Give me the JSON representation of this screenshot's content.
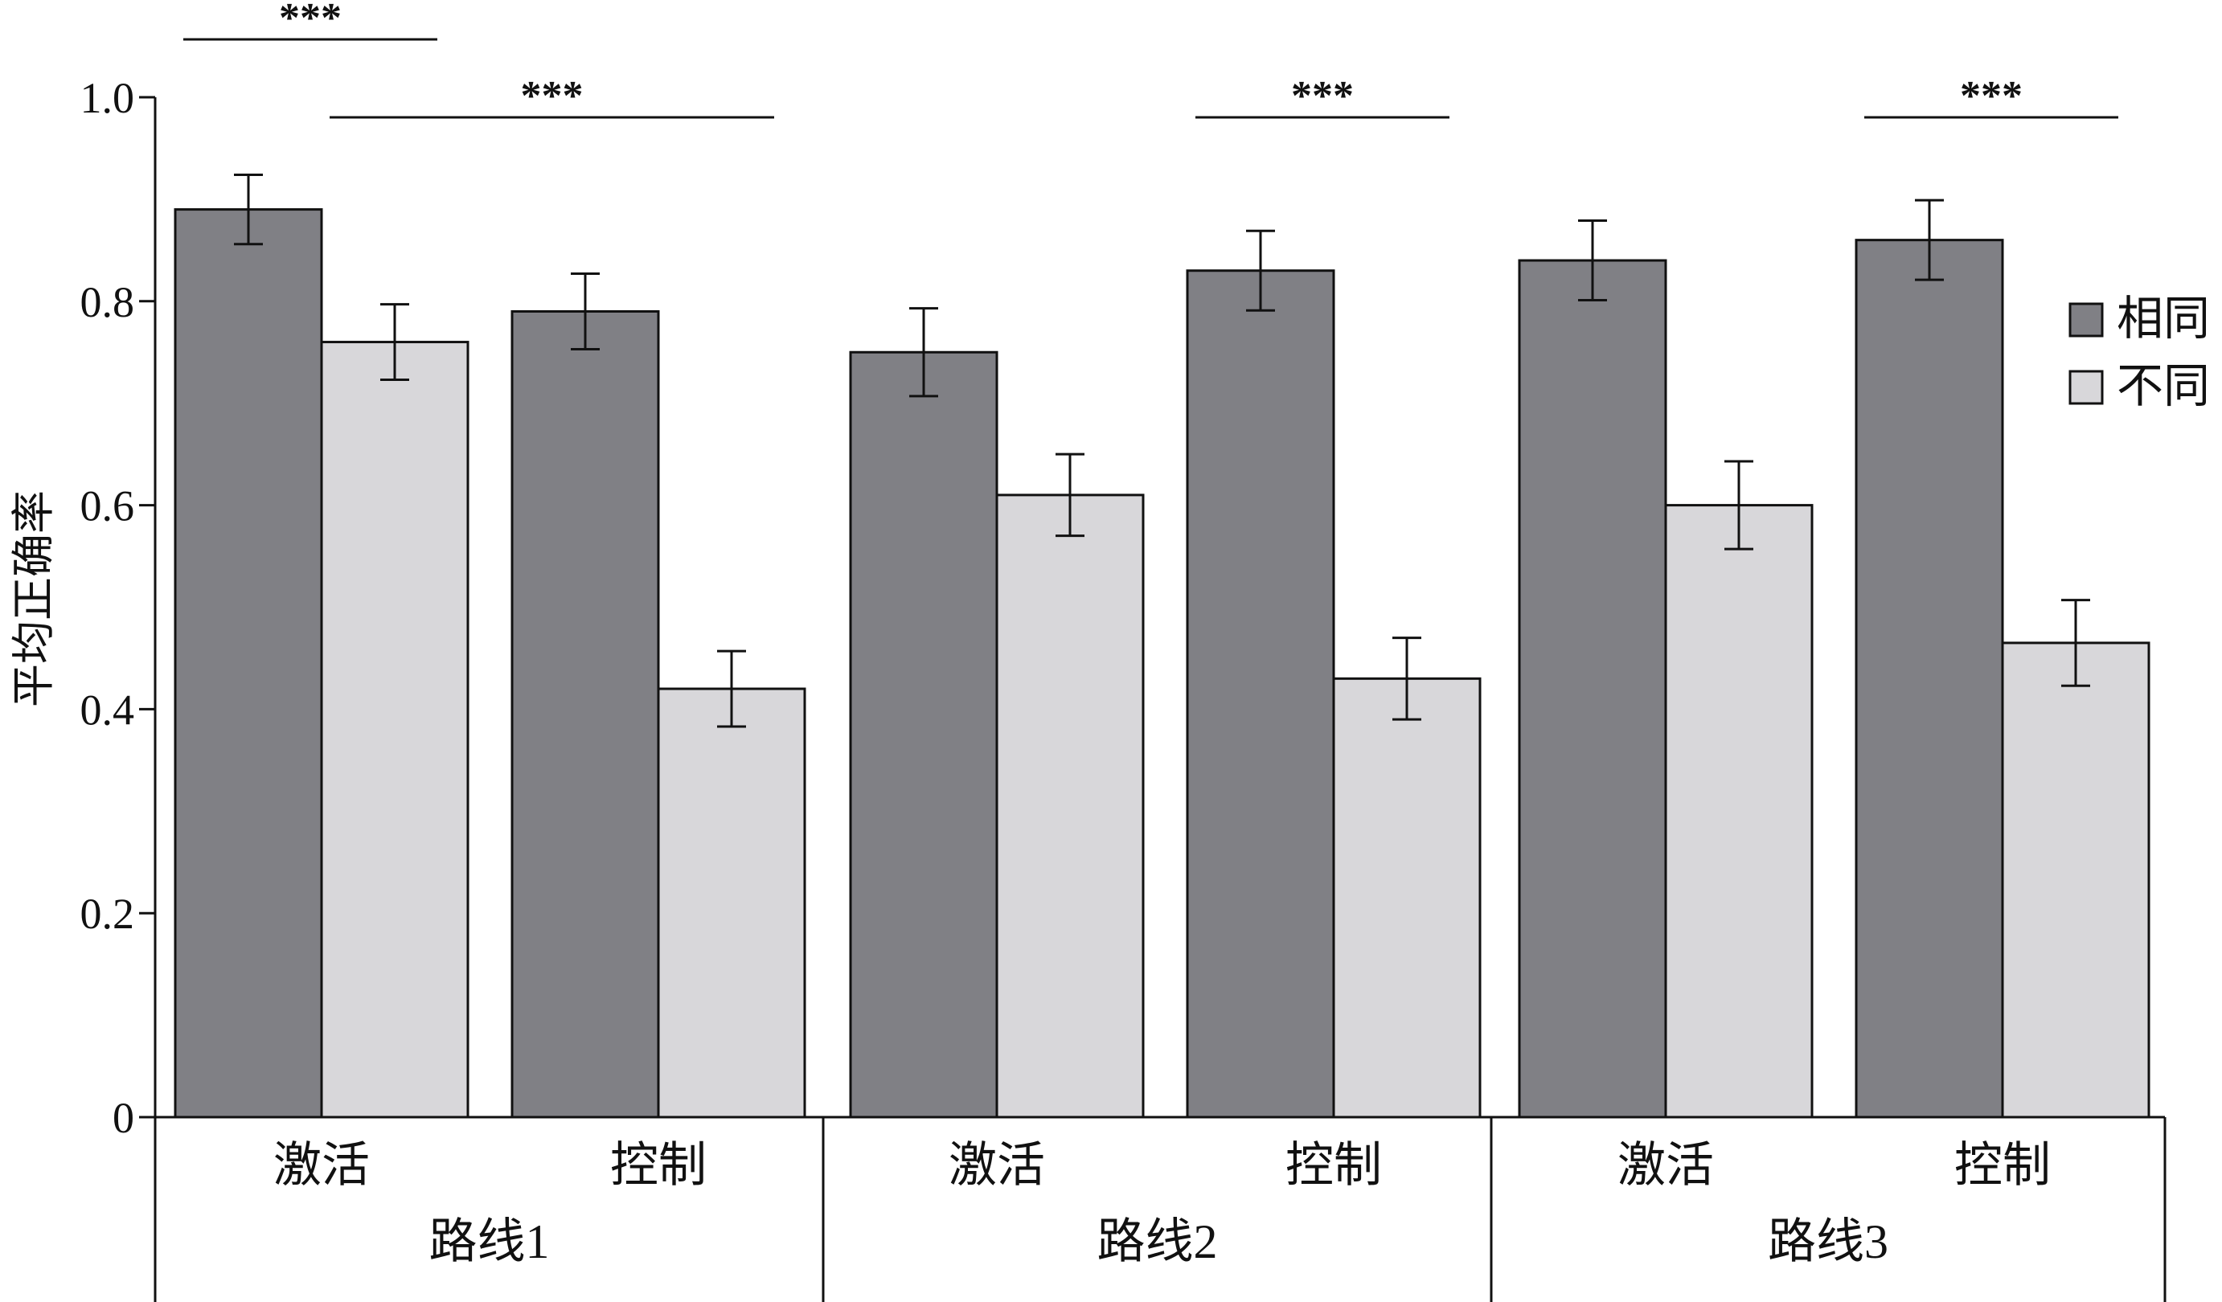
{
  "chart_data": {
    "type": "bar",
    "ylabel": "平均正确率",
    "ylim": [
      0,
      1.0
    ],
    "yticks": [
      0,
      0.2,
      0.4,
      0.6,
      0.8,
      1.0
    ],
    "ytick_labels": [
      "0",
      "0.2",
      "0.4",
      "0.6",
      "0.8",
      "1.0"
    ],
    "groups": [
      "路线1",
      "路线2",
      "路线3"
    ],
    "subcategories": [
      "激活",
      "控制"
    ],
    "series": [
      {
        "name": "相同",
        "color": "#808085",
        "values": [
          0.89,
          0.79,
          0.75,
          0.83,
          0.84,
          0.86
        ],
        "errors": [
          0.034,
          0.037,
          0.043,
          0.039,
          0.039,
          0.039
        ]
      },
      {
        "name": "不同",
        "color": "#d8d7da",
        "values": [
          0.76,
          0.42,
          0.61,
          0.43,
          0.6,
          0.465
        ],
        "errors": [
          0.037,
          0.037,
          0.04,
          0.04,
          0.043,
          0.042
        ]
      }
    ],
    "significance": [
      {
        "label": "***",
        "from_bar": [
          0,
          0
        ],
        "to_bar": [
          1,
          0
        ]
      },
      {
        "label": "***",
        "from_bar": [
          1,
          0
        ],
        "to_bar": [
          1,
          1
        ]
      },
      {
        "label": "***",
        "from_bar": [
          0,
          3
        ],
        "to_bar": [
          1,
          3
        ]
      },
      {
        "label": "***",
        "from_bar": [
          0,
          5
        ],
        "to_bar": [
          1,
          5
        ]
      }
    ],
    "legend_position": "right"
  }
}
